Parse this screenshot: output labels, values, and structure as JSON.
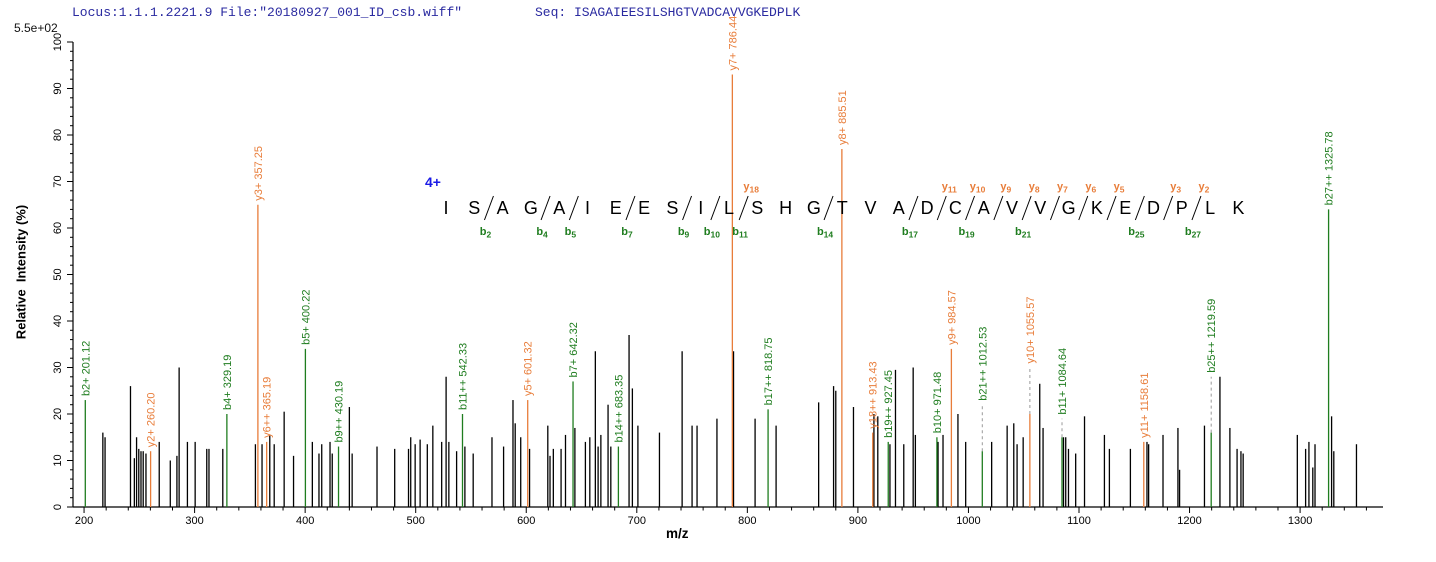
{
  "header": {
    "locus_file": "Locus:1.1.1.2221.9 File:\"20180927_001_ID_csb.wiff\"",
    "seq": "Seq: ISAGAIEESILSHGTVADCAVVGKEDPLK"
  },
  "axes": {
    "y_max_label": "5.5e+02",
    "ylabel": "Relative  Intensity (%)",
    "xlabel": "m/z"
  },
  "colors": {
    "b_ion": "#1f7d1f",
    "y_ion": "#e87d3a",
    "peak": "#000000",
    "header_text": "#2a2aa0",
    "charge_label": "#1a1ae6",
    "leader": "#9a9a9a",
    "axis": "#000000"
  },
  "chart_data": {
    "type": "bar",
    "subtype": "ms2-fragmentation-spectrum",
    "title": "",
    "xlabel": "m/z",
    "ylabel": "Relative  Intensity (%)",
    "y_max_intensity": "5.5e+02",
    "xlim": [
      190,
      1375
    ],
    "ylim": [
      0,
      100
    ],
    "x_major_ticks": [
      200,
      300,
      400,
      500,
      600,
      700,
      800,
      900,
      1000,
      1100,
      1200,
      1300
    ],
    "x_minor_step": 20,
    "y_major_step": 10,
    "y_minor_step": 2,
    "grid": false,
    "precursor_charge": "4+",
    "peptide": "ISAGAIEESILSHGTVADCAVVGKEDPLK",
    "fragment_sites": [
      {
        "site": 2,
        "b": "b2"
      },
      {
        "site": 4,
        "b": "b4"
      },
      {
        "site": 5,
        "b": "b5"
      },
      {
        "site": 7,
        "b": "b7"
      },
      {
        "site": 9,
        "b": "b9"
      },
      {
        "site": 10,
        "b": "b10"
      },
      {
        "site": 11,
        "b": "b11",
        "y": "y18"
      },
      {
        "site": 14,
        "b": "b14"
      },
      {
        "site": 17,
        "b": "b17"
      },
      {
        "site": 18,
        "y": "y11"
      },
      {
        "site": 19,
        "b": "b19",
        "y": "y10"
      },
      {
        "site": 20,
        "y": "y9"
      },
      {
        "site": 21,
        "b": "b21",
        "y": "y8"
      },
      {
        "site": 22,
        "y": "y7"
      },
      {
        "site": 23,
        "y": "y6"
      },
      {
        "site": 24,
        "y": "y5"
      },
      {
        "site": 25,
        "b": "b25"
      },
      {
        "site": 26,
        "y": "y3"
      },
      {
        "site": 27,
        "b": "b27",
        "y": "y2"
      }
    ],
    "labeled_peaks": [
      {
        "label": "b2+ 201.12",
        "ion": "b",
        "mz": 201.12,
        "intensity": 23
      },
      {
        "label": "y2+ 260.20",
        "ion": "y",
        "mz": 260.2,
        "intensity": 12
      },
      {
        "label": "b4+ 329.19",
        "ion": "b",
        "mz": 329.19,
        "intensity": 20
      },
      {
        "label": "y3+ 357.25",
        "ion": "y",
        "mz": 357.25,
        "intensity": 65
      },
      {
        "label": "y6++ 365.19",
        "ion": "y",
        "mz": 365.19,
        "intensity": 14
      },
      {
        "label": "b5+ 400.22",
        "ion": "b",
        "mz": 400.22,
        "intensity": 34
      },
      {
        "label": "b9++ 430.19",
        "ion": "b",
        "mz": 430.19,
        "intensity": 13
      },
      {
        "label": "b11++ 542.33",
        "ion": "b",
        "mz": 542.33,
        "intensity": 20
      },
      {
        "label": "y5+ 601.32",
        "ion": "y",
        "mz": 601.32,
        "intensity": 23
      },
      {
        "label": "b7+ 642.32",
        "ion": "b",
        "mz": 642.32,
        "intensity": 27
      },
      {
        "label": "b14++ 683.35",
        "ion": "b",
        "mz": 683.35,
        "intensity": 13
      },
      {
        "label": "y7+ 786.44",
        "ion": "y",
        "mz": 786.44,
        "intensity": 93
      },
      {
        "label": "b17++ 818.75",
        "ion": "b",
        "mz": 818.75,
        "intensity": 21
      },
      {
        "label": "y8+ 885.51",
        "ion": "y",
        "mz": 885.51,
        "intensity": 77
      },
      {
        "label": "y18++ 913.43",
        "ion": "y",
        "mz": 913.43,
        "intensity": 16
      },
      {
        "label": "b19++ 927.45",
        "ion": "b",
        "mz": 927.45,
        "intensity": 14
      },
      {
        "label": "b10+ 971.48",
        "ion": "b",
        "mz": 971.48,
        "intensity": 15
      },
      {
        "label": "y9+ 984.57",
        "ion": "y",
        "mz": 984.57,
        "intensity": 34
      },
      {
        "label": "b21++ 1012.53",
        "ion": "b",
        "mz": 1012.53,
        "intensity": 12,
        "label_intensity": 22
      },
      {
        "label": "y10+ 1055.57",
        "ion": "y",
        "mz": 1055.57,
        "intensity": 20,
        "label_intensity": 30
      },
      {
        "label": "b11+ 1084.64",
        "ion": "b",
        "mz": 1084.64,
        "intensity": 15,
        "label_intensity": 19
      },
      {
        "label": "y11+ 1158.61",
        "ion": "y",
        "mz": 1158.61,
        "intensity": 14
      },
      {
        "label": "b25++ 1219.59",
        "ion": "b",
        "mz": 1219.59,
        "intensity": 16,
        "label_intensity": 28
      },
      {
        "label": "b27++ 1325.78",
        "ion": "b",
        "mz": 1325.78,
        "intensity": 64
      }
    ],
    "unlabeled_peaks": [
      [
        217,
        16
      ],
      [
        219,
        15
      ],
      [
        242,
        26
      ],
      [
        245.5,
        10.5
      ],
      [
        247.5,
        15
      ],
      [
        249.5,
        12.5
      ],
      [
        251.5,
        12
      ],
      [
        253.5,
        12
      ],
      [
        256,
        11.5
      ],
      [
        268,
        14
      ],
      [
        278,
        10
      ],
      [
        284,
        11
      ],
      [
        286,
        30
      ],
      [
        293.5,
        14
      ],
      [
        300.5,
        14
      ],
      [
        311,
        12.5
      ],
      [
        313,
        12.5
      ],
      [
        325.5,
        12.5
      ],
      [
        355,
        13.5
      ],
      [
        361,
        13.5
      ],
      [
        368,
        15.5
      ],
      [
        372,
        13.5
      ],
      [
        381,
        20.5
      ],
      [
        389.5,
        11
      ],
      [
        406.5,
        14
      ],
      [
        412.5,
        11.5
      ],
      [
        415,
        13.5
      ],
      [
        422.5,
        14
      ],
      [
        424.5,
        11.5
      ],
      [
        440,
        21.5
      ],
      [
        442.5,
        11.5
      ],
      [
        465,
        13
      ],
      [
        481,
        12.5
      ],
      [
        493.5,
        12.5
      ],
      [
        495.5,
        15
      ],
      [
        499.5,
        13.5
      ],
      [
        504,
        14.5
      ],
      [
        510.5,
        13.5
      ],
      [
        515.5,
        17.5
      ],
      [
        523.5,
        14
      ],
      [
        527.5,
        28
      ],
      [
        530,
        14
      ],
      [
        537,
        12
      ],
      [
        544.5,
        13
      ],
      [
        552,
        11.5
      ],
      [
        569,
        15
      ],
      [
        579.5,
        13
      ],
      [
        588,
        23
      ],
      [
        590,
        18
      ],
      [
        595,
        15
      ],
      [
        603,
        12.5
      ],
      [
        619.5,
        17.5
      ],
      [
        621.5,
        11
      ],
      [
        624.5,
        12.5
      ],
      [
        631.5,
        12.5
      ],
      [
        635.5,
        15.5
      ],
      [
        644,
        17
      ],
      [
        653.5,
        14
      ],
      [
        657.5,
        15
      ],
      [
        662.5,
        33.5
      ],
      [
        665,
        13
      ],
      [
        667.5,
        15.5
      ],
      [
        674,
        22
      ],
      [
        676.5,
        13
      ],
      [
        693,
        37
      ],
      [
        696,
        25.5
      ],
      [
        701,
        17.5
      ],
      [
        720.5,
        16
      ],
      [
        741,
        33.5
      ],
      [
        750,
        17.5
      ],
      [
        754.5,
        17.5
      ],
      [
        772.5,
        19
      ],
      [
        787.5,
        33.5
      ],
      [
        807,
        19
      ],
      [
        826,
        17.5
      ],
      [
        864.5,
        22.5
      ],
      [
        878,
        26
      ],
      [
        880,
        25
      ],
      [
        896,
        21.5
      ],
      [
        914.5,
        20
      ],
      [
        918,
        19.5
      ],
      [
        929,
        13.5
      ],
      [
        934,
        29.5
      ],
      [
        941.5,
        13.5
      ],
      [
        950,
        30
      ],
      [
        952,
        15.5
      ],
      [
        972.5,
        14
      ],
      [
        977,
        15.5
      ],
      [
        990.5,
        20
      ],
      [
        997.5,
        14
      ],
      [
        1021,
        14
      ],
      [
        1035,
        17.5
      ],
      [
        1041,
        18
      ],
      [
        1044,
        13.5
      ],
      [
        1049.5,
        15
      ],
      [
        1064.5,
        26.5
      ],
      [
        1067.5,
        17
      ],
      [
        1086,
        15
      ],
      [
        1088,
        15
      ],
      [
        1090.5,
        12.5
      ],
      [
        1097,
        11.5
      ],
      [
        1105,
        19.5
      ],
      [
        1123,
        15.5
      ],
      [
        1127.5,
        12.5
      ],
      [
        1146.5,
        12.5
      ],
      [
        1161.5,
        14
      ],
      [
        1163,
        13.5
      ],
      [
        1176,
        15.5
      ],
      [
        1189.5,
        17
      ],
      [
        1191,
        8
      ],
      [
        1213.5,
        17.5
      ],
      [
        1227.5,
        28
      ],
      [
        1236.5,
        17
      ],
      [
        1243,
        12.5
      ],
      [
        1246.5,
        12
      ],
      [
        1248.5,
        11.5
      ],
      [
        1297.5,
        15.5
      ],
      [
        1305,
        12.5
      ],
      [
        1308,
        14
      ],
      [
        1311.5,
        8.5
      ],
      [
        1313.5,
        13.5
      ],
      [
        1328.5,
        19.5
      ],
      [
        1330.5,
        12
      ],
      [
        1351,
        13.5
      ]
    ]
  }
}
